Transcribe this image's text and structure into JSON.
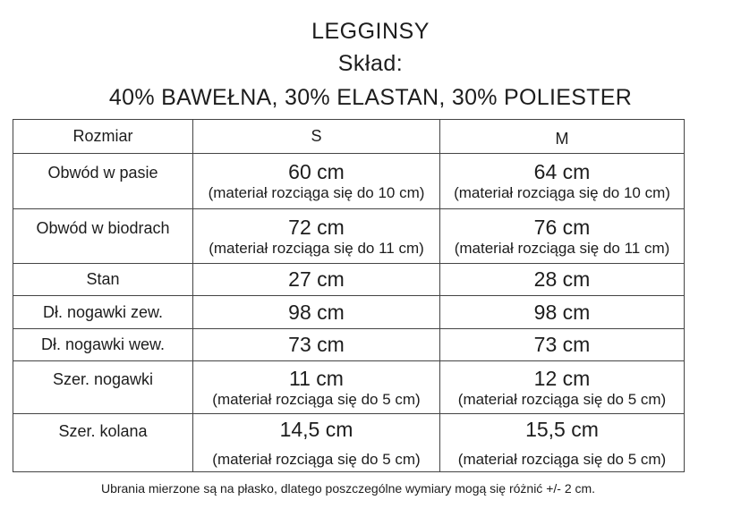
{
  "header": {
    "title": "LEGGINSY",
    "subtitle": "Skład:",
    "composition": "40% BAWEŁNA, 30% ELASTAN, 30% POLIESTER"
  },
  "table": {
    "columns": [
      "Rozmiar",
      "S",
      "M"
    ],
    "rows": [
      {
        "label": "Obwód w pasie",
        "s": {
          "value": "60 cm",
          "note": "(materiał rozciąga się do 10 cm)"
        },
        "m": {
          "value": "64 cm",
          "note": "(materiał rozciąga się do 10 cm)"
        }
      },
      {
        "label": "Obwód w biodrach",
        "s": {
          "value": "72 cm",
          "note": "(materiał rozciąga się do 11 cm)"
        },
        "m": {
          "value": "76 cm",
          "note": "(materiał rozciąga się do 11 cm)"
        }
      },
      {
        "label": "Stan",
        "s": {
          "value": "27 cm"
        },
        "m": {
          "value": "28 cm"
        }
      },
      {
        "label": "Dł. nogawki zew.",
        "s": {
          "value": "98 cm"
        },
        "m": {
          "value": "98 cm"
        }
      },
      {
        "label": "Dł. nogawki wew.",
        "s": {
          "value": "73 cm"
        },
        "m": {
          "value": "73 cm"
        }
      },
      {
        "label": "Szer. nogawki",
        "s": {
          "value": "11 cm",
          "note": "(materiał rozciąga się do 5 cm)"
        },
        "m": {
          "value": "12 cm",
          "note": "(materiał rozciąga się do 5 cm)"
        }
      },
      {
        "label": "Szer. kolana",
        "s": {
          "value": "14,5 cm",
          "note": "(materiał rozciąga się do 5 cm)"
        },
        "m": {
          "value": "15,5 cm",
          "note": "(materiał rozciąga się do 5 cm)"
        }
      }
    ]
  },
  "footer": {
    "disclaimer": "Ubrania mierzone są na płasko, dlatego poszczególne wymiary mogą się różnić +/- 2 cm."
  },
  "colors": {
    "text": "#1d1d1d",
    "border": "#444444",
    "background": "#ffffff"
  }
}
